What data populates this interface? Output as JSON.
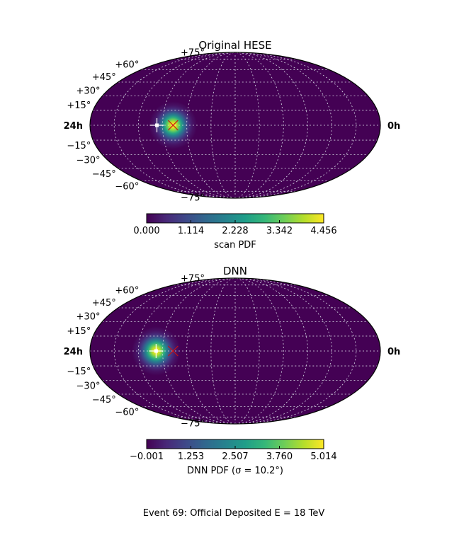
{
  "caption": "Event 69: Official Deposited E = 18 TeV",
  "colormap": [
    "#440154",
    "#482878",
    "#3e4989",
    "#31688e",
    "#26828e",
    "#1f9e89",
    "#35b779",
    "#6ece58",
    "#b5de2b",
    "#fde725"
  ],
  "colors": {
    "background": "#ffffff",
    "grid": "#d8d8e6",
    "outline": "#000000",
    "true_marker": "#cc1111",
    "best_fit_marker": "#ffffff"
  },
  "chart_data": [
    {
      "type": "heatmap",
      "projection": "mollweide",
      "title": "Original HESE",
      "grid": true,
      "lat_ticks": [
        "+75°",
        "+60°",
        "+45°",
        "+30°",
        "+15°",
        "−15°",
        "−30°",
        "−45°",
        "−60°",
        "−75°"
      ],
      "ra_labels": {
        "left": "24h",
        "right": "0h"
      },
      "lat_grid_deg": [
        -75,
        -60,
        -45,
        -30,
        -15,
        0,
        15,
        30,
        45,
        60,
        75
      ],
      "lon_grid_deg": [
        -150,
        -120,
        -90,
        -60,
        -30,
        0,
        30,
        60,
        90,
        120,
        150
      ],
      "pdf_center_deg": {
        "lon": 77,
        "lat": 0
      },
      "pdf_width_deg": 10,
      "best_fit_deg": {
        "lon": 97,
        "lat": 0
      },
      "true_direction_deg": {
        "lon": 77,
        "lat": 0
      },
      "colorbar": {
        "label": "scan PDF",
        "min": 0.0,
        "max": 4.456,
        "ticks": [
          "0.000",
          "1.114",
          "2.228",
          "3.342",
          "4.456"
        ]
      }
    },
    {
      "type": "heatmap",
      "projection": "mollweide",
      "title": "DNN",
      "grid": true,
      "lat_ticks": [
        "+75°",
        "+60°",
        "+45°",
        "+30°",
        "+15°",
        "−15°",
        "−30°",
        "−45°",
        "−60°",
        "−75°"
      ],
      "ra_labels": {
        "left": "24h",
        "right": "0h"
      },
      "lat_grid_deg": [
        -75,
        -60,
        -45,
        -30,
        -15,
        0,
        15,
        30,
        45,
        60,
        75
      ],
      "lon_grid_deg": [
        -150,
        -120,
        -90,
        -60,
        -30,
        0,
        30,
        60,
        90,
        120,
        150
      ],
      "pdf_center_deg": {
        "lon": 98,
        "lat": 0
      },
      "pdf_width_deg": 10.2,
      "best_fit_deg": {
        "lon": 98,
        "lat": 0
      },
      "true_direction_deg": {
        "lon": 77,
        "lat": 0
      },
      "colorbar": {
        "label": "DNN PDF (σ = 10.2°)",
        "min": -0.001,
        "max": 5.014,
        "ticks": [
          "−0.001",
          "1.253",
          "2.507",
          "3.760",
          "5.014"
        ]
      }
    }
  ]
}
